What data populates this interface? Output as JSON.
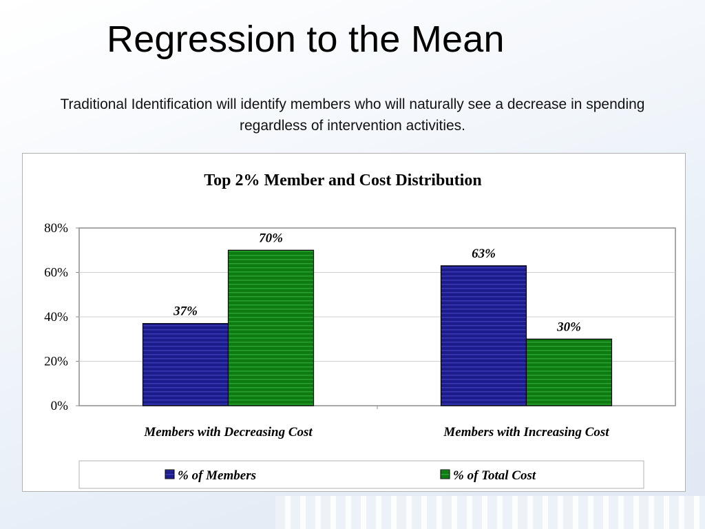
{
  "slide": {
    "title": "Regression to the Mean",
    "subtitle": "Traditional Identification will identify members who will naturally see a decrease in spending regardless of intervention activities."
  },
  "chart_data": {
    "type": "bar",
    "title": "Top 2% Member and Cost Distribution",
    "categories": [
      "Members with Decreasing Cost",
      "Members with Increasing Cost"
    ],
    "series": [
      {
        "name": "% of Members",
        "values": [
          37,
          63
        ],
        "labels": [
          "37%",
          "63%"
        ],
        "color": "#1c1c8c"
      },
      {
        "name": "% of Total Cost",
        "values": [
          70,
          30
        ],
        "labels": [
          "70%",
          "30%"
        ],
        "color": "#0e7a12"
      }
    ],
    "yticks": [
      "0%",
      "20%",
      "40%",
      "60%",
      "80%"
    ],
    "ylim": [
      0,
      80
    ],
    "grid": true,
    "legend": "bottom",
    "xlabel": "",
    "ylabel": ""
  }
}
